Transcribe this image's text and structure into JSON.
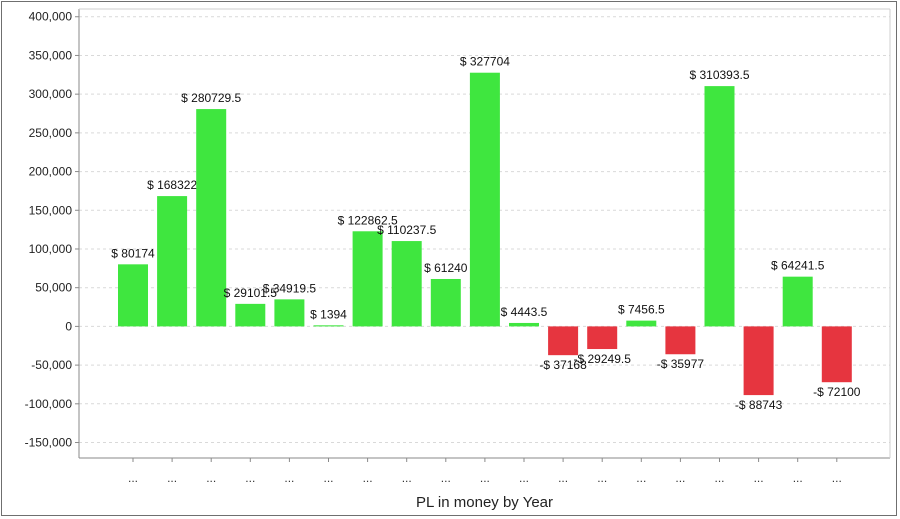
{
  "chart_data": {
    "type": "bar",
    "title": "",
    "xlabel": "PL in money by Year",
    "ylabel": "",
    "ylim": [
      -170000,
      410000
    ],
    "yticks": [
      400000,
      350000,
      300000,
      250000,
      200000,
      150000,
      100000,
      50000,
      0,
      -50000,
      -100000,
      -150000
    ],
    "ytick_labels": [
      "400,000",
      "350,000",
      "300,000",
      "250,000",
      "200,000",
      "150,000",
      "100,000",
      "50,000",
      "0",
      "-50,000",
      "-100,000",
      "-150,000"
    ],
    "grid": true,
    "categories": [
      "...",
      "...",
      "...",
      "...",
      "...",
      "...",
      "...",
      "...",
      "...",
      "...",
      "...",
      "...",
      "...",
      "...",
      "...",
      "...",
      "...",
      "...",
      "..."
    ],
    "values": [
      80174,
      168322,
      280729.5,
      29101.5,
      34919.5,
      1394,
      122862.5,
      110237.5,
      61240,
      327704,
      4443.5,
      -37168,
      -29249.5,
      7456.5,
      -35977,
      310393.5,
      -88743,
      64241.5,
      -72100
    ],
    "data_labels": [
      "$ 80174",
      "$ 168322",
      "$ 280729.5",
      "$ 29101.5",
      "$ 34919.5",
      "$ 1394",
      "$ 122862.5",
      "$ 110237.5",
      "$ 61240",
      "$ 327704",
      "$ 4443.5",
      "-$ 37168",
      "-$ 29249.5",
      "$ 7456.5",
      "-$ 35977",
      "$ 310393.5",
      "-$ 88743",
      "$ 64241.5",
      "-$ 72100"
    ],
    "colors": {
      "positive": "#3fe63f",
      "negative": "#e6353f",
      "grid": "#d9d9d9",
      "axis": "#8a8a8a"
    }
  }
}
